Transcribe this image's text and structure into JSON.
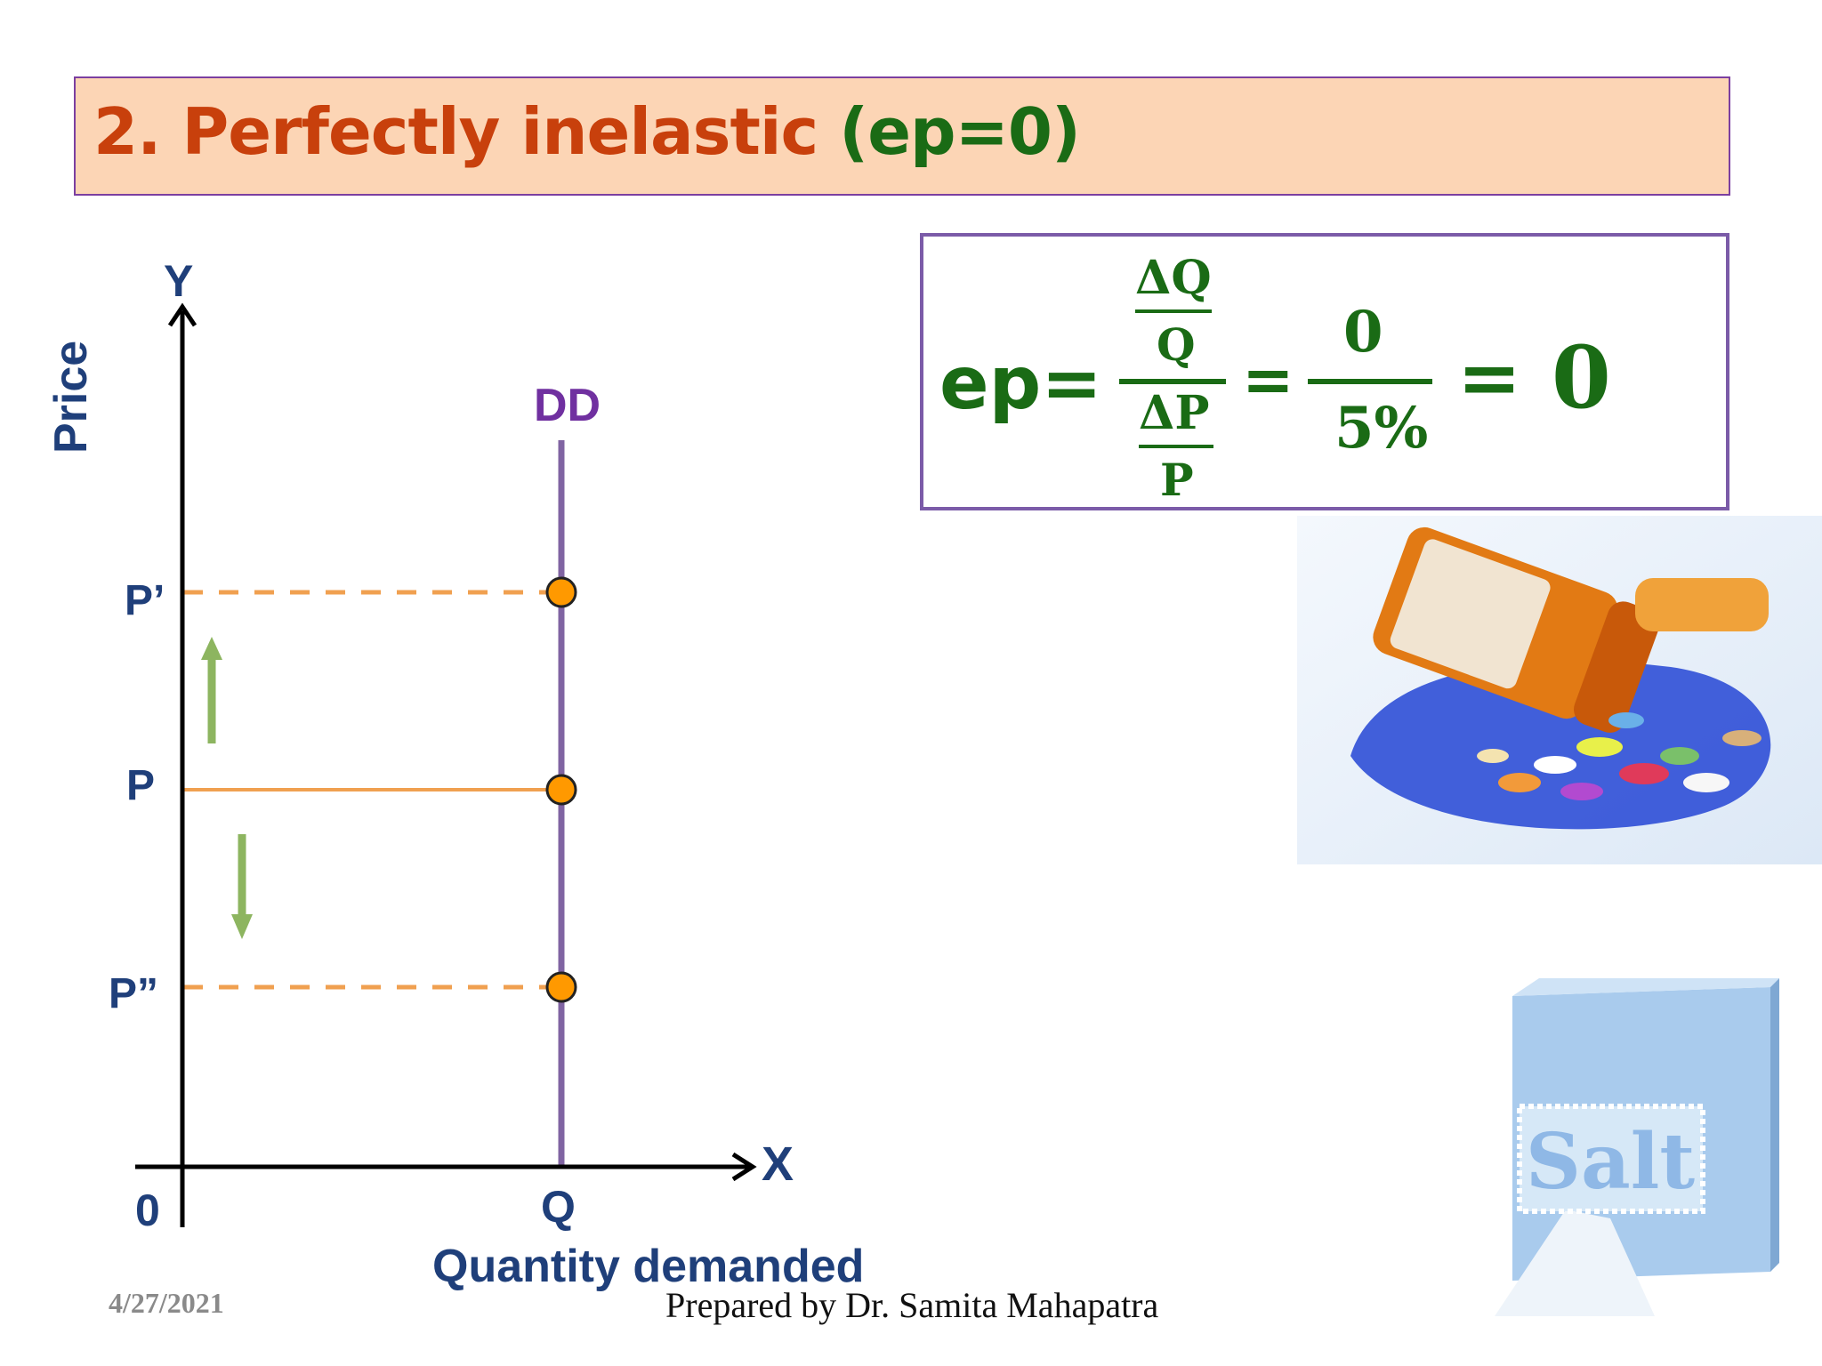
{
  "title": {
    "main": "2. Perfectly inelastic ",
    "paren": "(ep=0)"
  },
  "formula": {
    "lhs": "ep=",
    "num_delta": "ΔQ",
    "num_base": "Q",
    "den_delta": "ΔP",
    "den_base": "P",
    "eq1": "=",
    "frac2_num": "0",
    "frac2_den": "5%",
    "eq2": "=",
    "result": "0"
  },
  "graph": {
    "y_axis_letter": "Y",
    "x_axis_letter": "X",
    "y_axis_title": "Price",
    "x_axis_title": "Quantity demanded",
    "origin": "0",
    "curve_label": "DD",
    "q_label": "Q",
    "price_labels": [
      "P’",
      "P",
      "P”"
    ],
    "colors": {
      "axis": "#000000",
      "demand_line": "#8064a2",
      "price_lines": "#f0a050",
      "points": "#ff9900",
      "arrows": "#8db560",
      "labels": "#1f3f7a",
      "curve_label": "#7030a0"
    }
  },
  "images": {
    "top_right": "medicine-bottle-pills-image",
    "bottom_right": "salt-box-image",
    "salt_text": "Salt"
  },
  "footer": {
    "date": "4/27/2021",
    "author": "Prepared by Dr. Samita Mahapatra"
  }
}
